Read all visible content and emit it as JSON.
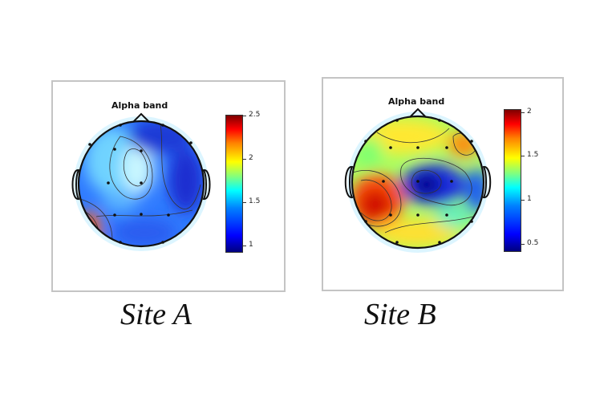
{
  "panels": [
    {
      "id": "site-a",
      "band_title": "Alpha band",
      "site_label": "Site A",
      "colorbar_ticks": [
        "2.5",
        "2",
        "1.5",
        "1"
      ]
    },
    {
      "id": "site-b",
      "band_title": "Alpha band",
      "site_label": "Site B",
      "colorbar_ticks": [
        "2",
        "1.5",
        "1",
        "0.5"
      ]
    }
  ],
  "colors": {
    "colormap": "jet",
    "panel_border": "#c4c4c4"
  }
}
